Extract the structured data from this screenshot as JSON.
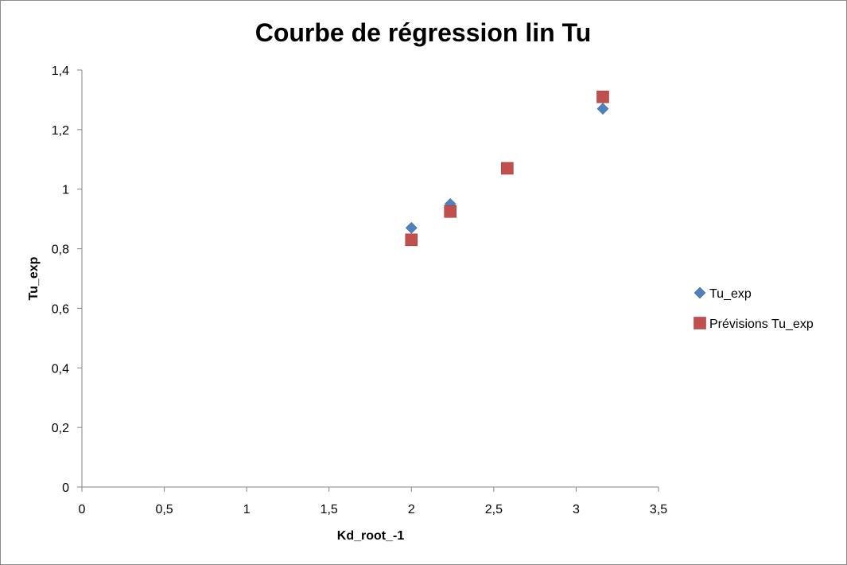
{
  "chart_data": {
    "type": "scatter",
    "title": "Courbe de régression lin Tu",
    "xlabel": "Kd_root_-1",
    "ylabel": "Tu_exp",
    "xlim": [
      0,
      3.5
    ],
    "ylim": [
      0,
      1.4
    ],
    "x_ticks": [
      "0",
      "0,5",
      "1",
      "1,5",
      "2",
      "2,5",
      "3",
      "3,5"
    ],
    "y_ticks": [
      "0",
      "0,2",
      "0,4",
      "0,6",
      "0,8",
      "1",
      "1,2",
      "1,4"
    ],
    "grid": false,
    "legend_position": "right",
    "series": [
      {
        "name": "Tu_exp",
        "marker": "diamond",
        "color": "#4f81bd",
        "points": [
          {
            "x": 2.0,
            "y": 0.87
          },
          {
            "x": 2.236,
            "y": 0.95
          },
          {
            "x": 3.162,
            "y": 1.27
          }
        ]
      },
      {
        "name": "Prévisions Tu_exp",
        "marker": "square",
        "color": "#c0504d",
        "points": [
          {
            "x": 2.0,
            "y": 0.83
          },
          {
            "x": 2.236,
            "y": 0.925
          },
          {
            "x": 2.582,
            "y": 1.07
          },
          {
            "x": 3.162,
            "y": 1.31
          }
        ]
      }
    ]
  }
}
